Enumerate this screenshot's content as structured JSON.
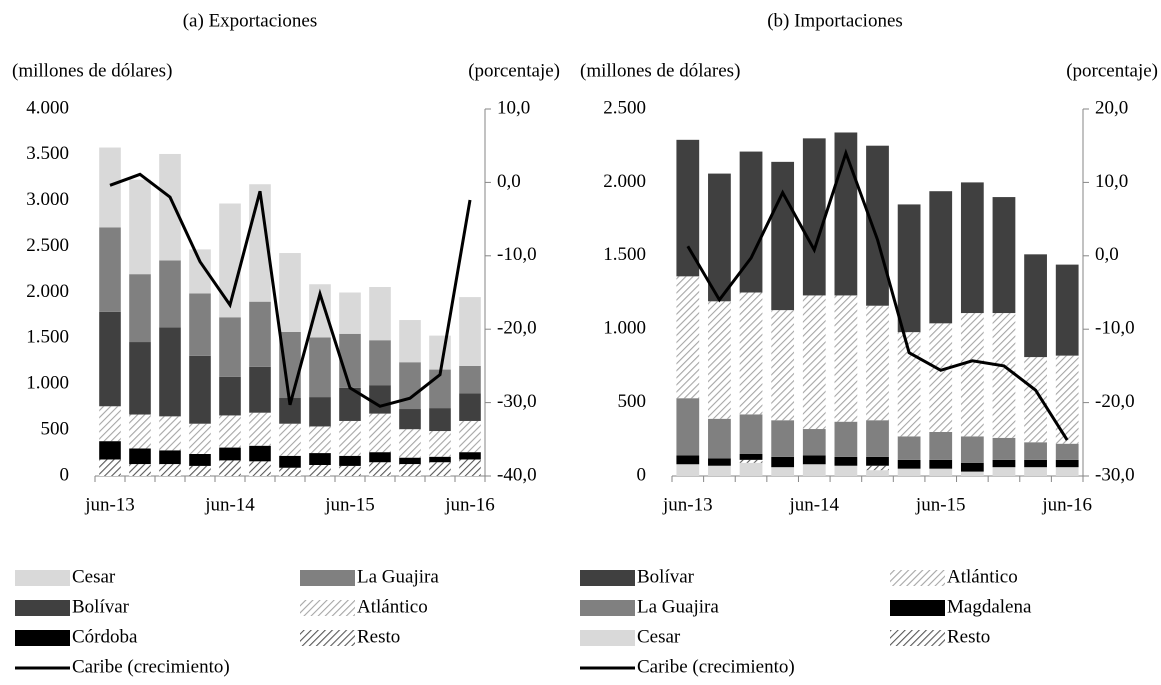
{
  "chart_data": [
    {
      "type": "bar",
      "title": "(a) Exportaciones",
      "y_label": "(millones de dólares)",
      "y2_label": "(porcentaje)",
      "categories": [
        "jun-13",
        null,
        null,
        null,
        "jun-14",
        null,
        null,
        null,
        "jun-15",
        null,
        null,
        null,
        "jun-16"
      ],
      "ylim": [
        0,
        4000
      ],
      "yticks": [
        0,
        500,
        {
          "value": 1000,
          "label": "1.000"
        },
        {
          "value": 1500,
          "label": "1.500"
        },
        {
          "value": 2000,
          "label": "2.000"
        },
        {
          "value": 2500,
          "label": "2.500"
        },
        {
          "value": 3000,
          "label": "3.000"
        },
        {
          "value": 3500,
          "label": "3.500"
        },
        {
          "value": 4000,
          "label": "4.000"
        }
      ],
      "y2lim": [
        -40,
        10
      ],
      "y2ticks": [
        {
          "value": -40,
          "label": "-40,0"
        },
        {
          "value": -30,
          "label": "-30,0"
        },
        {
          "value": -20,
          "label": "-20,0"
        },
        {
          "value": -10,
          "label": "-10,0"
        },
        {
          "value": 0,
          "label": "0,0"
        },
        {
          "value": 10,
          "label": "10,0"
        }
      ],
      "series": [
        {
          "name": "Cesar",
          "color": "#d9d9d9",
          "values": [
            870,
            1030,
            1160,
            480,
            1240,
            1280,
            860,
            580,
            450,
            580,
            460,
            370,
            750
          ]
        },
        {
          "name": "La Guajira",
          "color": "#808080",
          "values": [
            920,
            740,
            730,
            680,
            650,
            710,
            720,
            650,
            590,
            490,
            510,
            420,
            300
          ]
        },
        {
          "name": "Bolívar",
          "color": "#404040",
          "values": [
            1030,
            790,
            970,
            740,
            420,
            500,
            280,
            320,
            360,
            310,
            220,
            250,
            300
          ]
        },
        {
          "name": "Atlántico",
          "color": "#a6a6a6",
          "pattern": "hatch",
          "values": [
            380,
            370,
            370,
            330,
            350,
            360,
            350,
            290,
            380,
            420,
            310,
            280,
            340
          ]
        },
        {
          "name": "Córdoba",
          "color": "#000000",
          "values": [
            200,
            170,
            150,
            130,
            140,
            170,
            130,
            130,
            110,
            110,
            70,
            60,
            80
          ]
        },
        {
          "name": "Resto",
          "color": "#595959",
          "pattern": "hatch",
          "values": [
            180,
            130,
            130,
            110,
            170,
            160,
            90,
            120,
            110,
            150,
            130,
            150,
            180
          ]
        },
        {
          "name": "Caribe (crecimiento)",
          "color": "#000000",
          "type": "line",
          "axis": "y2",
          "values": [
            -0.4,
            1.1,
            -2.0,
            -10.8,
            -16.7,
            -1.2,
            -30.3,
            -15.2,
            -28.0,
            -30.5,
            -29.4,
            -26.2,
            -2.4
          ]
        }
      ]
    },
    {
      "type": "bar",
      "title": "(b) Importaciones",
      "y_label": "(millones de dólares)",
      "y2_label": "(porcentaje)",
      "categories": [
        "jun-13",
        null,
        null,
        null,
        "jun-14",
        null,
        null,
        null,
        "jun-15",
        null,
        null,
        null,
        "jun-16"
      ],
      "ylim": [
        0,
        2500
      ],
      "yticks": [
        0,
        500,
        {
          "value": 1000,
          "label": "1.000"
        },
        {
          "value": 1500,
          "label": "1.500"
        },
        {
          "value": 2000,
          "label": "2.000"
        },
        {
          "value": 2500,
          "label": "2.500"
        }
      ],
      "y2lim": [
        -30,
        20
      ],
      "y2ticks": [
        {
          "value": -30,
          "label": "-30,0"
        },
        {
          "value": -20,
          "label": "-20,0"
        },
        {
          "value": -10,
          "label": "-10,0"
        },
        {
          "value": 0,
          "label": "0,0"
        },
        {
          "value": 10,
          "label": "10,0"
        },
        {
          "value": 20,
          "label": "20,0"
        }
      ],
      "series": [
        {
          "name": "Bolívar",
          "color": "#404040",
          "values": [
            930,
            870,
            960,
            1010,
            1070,
            1110,
            1090,
            870,
            900,
            890,
            790,
            700,
            620
          ]
        },
        {
          "name": "Atlántico",
          "color": "#a6a6a6",
          "pattern": "hatch",
          "values": [
            830,
            800,
            830,
            750,
            910,
            860,
            780,
            710,
            740,
            840,
            850,
            580,
            600
          ]
        },
        {
          "name": "La Guajira",
          "color": "#808080",
          "values": [
            390,
            270,
            270,
            250,
            180,
            240,
            250,
            160,
            190,
            180,
            150,
            120,
            110
          ]
        },
        {
          "name": "Magdalena",
          "color": "#000000",
          "values": [
            60,
            50,
            40,
            70,
            60,
            60,
            60,
            60,
            60,
            60,
            50,
            50,
            50
          ]
        },
        {
          "name": "Cesar",
          "color": "#d9d9d9",
          "values": [
            80,
            70,
            90,
            60,
            80,
            70,
            40,
            50,
            50,
            30,
            60,
            60,
            60
          ]
        },
        {
          "name": "Resto",
          "color": "#595959",
          "pattern": "hatch",
          "values": [
            0,
            0,
            20,
            0,
            0,
            0,
            30,
            0,
            0,
            0,
            0,
            0,
            0
          ]
        },
        {
          "name": "Caribe (crecimiento)",
          "color": "#000000",
          "type": "line",
          "axis": "y2",
          "values": [
            1.3,
            -6.0,
            -0.3,
            8.6,
            0.8,
            14.0,
            2.2,
            -13.2,
            -15.6,
            -14.3,
            -15.0,
            -18.3,
            -25.1
          ]
        }
      ]
    }
  ]
}
